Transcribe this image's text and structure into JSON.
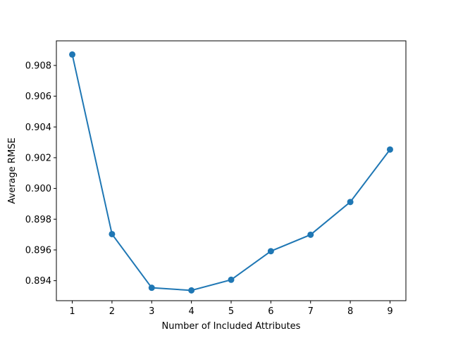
{
  "chart_data": {
    "type": "line",
    "title": "",
    "xlabel": "Number of Included Attributes",
    "ylabel": "Average RMSE",
    "x": [
      1,
      2,
      3,
      4,
      5,
      6,
      7,
      8,
      9
    ],
    "series": [
      {
        "values": [
          0.90871,
          0.89703,
          0.89354,
          0.89337,
          0.89406,
          0.89592,
          0.89699,
          0.89912,
          0.90253
        ],
        "color": "#1f77b4",
        "marker": "circle"
      }
    ],
    "xticks": [
      "1",
      "2",
      "3",
      "4",
      "5",
      "6",
      "7",
      "8",
      "9"
    ],
    "yticks": [
      "0.894",
      "0.896",
      "0.898",
      "0.900",
      "0.902",
      "0.904",
      "0.906",
      "0.908"
    ],
    "xlim": [
      0.6,
      9.4
    ],
    "ylim": [
      0.8927,
      0.9096
    ],
    "grid": false,
    "legend": "none"
  }
}
